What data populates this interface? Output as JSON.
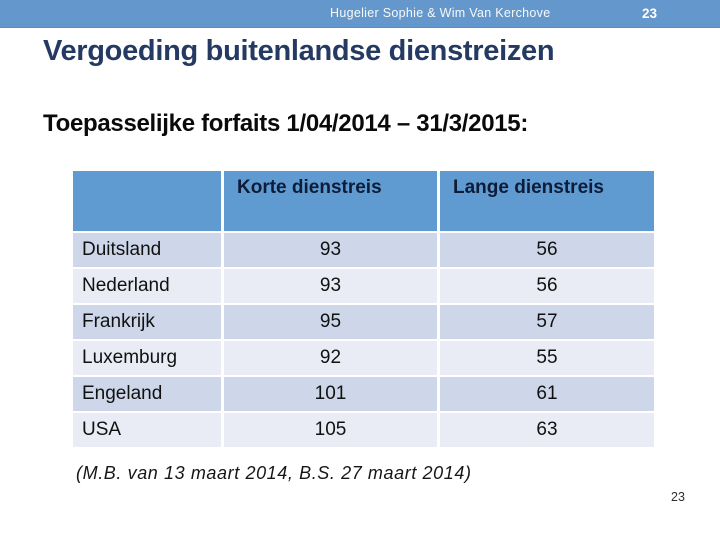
{
  "header_bar": {
    "title": "Hugelier Sophie & Wim Van Kerchove",
    "page_number": "23"
  },
  "slide": {
    "title": "Vergoeding buitenlandse dienstreizen",
    "subtitle": "Toepasselijke forfaits 1/04/2014 – 31/3/2015:",
    "footnote": "(M.B. van 13 maart 2014, B.S. 27 maart 2014)",
    "page_number": "23"
  },
  "table": {
    "columns": [
      "",
      "Korte dienstreis",
      "Lange dienstreis"
    ],
    "rows": [
      {
        "country": "Duitsland",
        "korte": "93",
        "lange": "56"
      },
      {
        "country": "Nederland",
        "korte": "93",
        "lange": "56"
      },
      {
        "country": "Frankrijk",
        "korte": "95",
        "lange": "57"
      },
      {
        "country": "Luxemburg",
        "korte": "92",
        "lange": "55"
      },
      {
        "country": "Engeland",
        "korte": "101",
        "lange": "61"
      },
      {
        "country": "USA",
        "korte": "105",
        "lange": "63"
      }
    ]
  },
  "colors": {
    "bar-blue": "#6497CB",
    "table-header-blue": "#5F9BD1",
    "row-dark": "#CED7E9",
    "row-light": "#E9ECF4",
    "title-navy": "#243A63"
  }
}
